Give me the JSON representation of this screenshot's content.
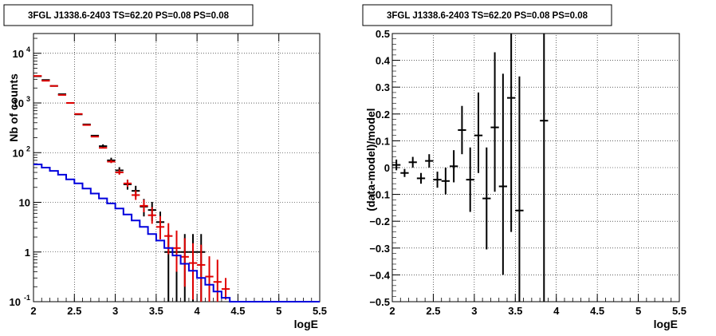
{
  "panels": {
    "left": {
      "title": "3FGL J1338.6-2403 TS=62.20 PS=0.08 PS=0.08"
    },
    "right": {
      "title": "3FGL J1338.6-2403 TS=62.20 PS=0.08 PS=0.08"
    }
  },
  "chart_data": [
    {
      "type": "scatter",
      "title": "3FGL J1338.6-2403 TS=62.20 PS=0.08 PS=0.08",
      "xlabel": "logE",
      "ylabel": "Nb of counts",
      "xlim": [
        2,
        5.5
      ],
      "ylim": [
        0.1,
        25000
      ],
      "yscale": "log",
      "grid": true,
      "x_ticks": [
        "2",
        "2.5",
        "3",
        "3.5",
        "4",
        "4.5",
        "5",
        "5.5"
      ],
      "y_ticks": [
        {
          "value": 0.1,
          "label": "10",
          "exp": "-1"
        },
        {
          "value": 1,
          "label": "1",
          "exp": ""
        },
        {
          "value": 10,
          "label": "10",
          "exp": ""
        },
        {
          "value": 100,
          "label": "10",
          "exp": "2"
        },
        {
          "value": 1000,
          "label": "10",
          "exp": "3"
        },
        {
          "value": 10000,
          "label": "10",
          "exp": "4"
        }
      ],
      "bin_width": 0.1,
      "series": [
        {
          "color": "#000000",
          "x": [
            2.05,
            2.15,
            2.25,
            2.35,
            2.45,
            2.55,
            2.65,
            2.75,
            2.85,
            2.95,
            3.05,
            3.15,
            3.25,
            3.35,
            3.45,
            3.55,
            3.65,
            3.75,
            3.85,
            3.95,
            4.05
          ],
          "values": [
            3450,
            2900,
            2200,
            1500,
            1000,
            590,
            370,
            220,
            135,
            70,
            44,
            23,
            17,
            8.2,
            7,
            4,
            1,
            1,
            1,
            1,
            1
          ],
          "err_low": [
            0,
            0,
            0,
            0,
            0,
            0,
            0,
            0,
            11,
            8,
            6.5,
            5,
            4,
            3,
            2.8,
            2,
            0.9,
            0.9,
            0.9,
            0.9,
            0.9
          ],
          "err_high": [
            0,
            0,
            0,
            0,
            0,
            0,
            0,
            0,
            12,
            9,
            7,
            5.5,
            4.5,
            3.5,
            3.2,
            2.5,
            1.3,
            1.3,
            1.3,
            1.3,
            1.3
          ]
        },
        {
          "color": "#e00000",
          "x": [
            2.05,
            2.15,
            2.25,
            2.35,
            2.45,
            2.55,
            2.65,
            2.75,
            2.85,
            2.95,
            3.05,
            3.15,
            3.25,
            3.35,
            3.45,
            3.55,
            3.65,
            3.75,
            3.85,
            3.95,
            4.05,
            4.15,
            4.25,
            4.35
          ],
          "values": [
            3500,
            2800,
            2200,
            1450,
            1000,
            600,
            360,
            210,
            125,
            66,
            40,
            24,
            14,
            8.5,
            5.5,
            3.2,
            2.1,
            1.2,
            0.8,
            0.6,
            0.55,
            0.32,
            0.25,
            0.18
          ],
          "err_low": [
            0,
            0,
            0,
            0,
            0,
            0,
            0,
            0,
            0,
            4,
            4,
            3.5,
            2.8,
            2.2,
            1.8,
            1.4,
            1.2,
            0.8,
            0.6,
            0.49,
            0.46,
            0.28,
            0.22,
            0.07
          ],
          "err_high": [
            0,
            0,
            0,
            0,
            0,
            0,
            0,
            0,
            0,
            5,
            5.5,
            4.5,
            3.5,
            2.8,
            2.5,
            2.1,
            1.7,
            1.5,
            1.1,
            0.9,
            0.85,
            0.5,
            0.45,
            0.12
          ]
        },
        {
          "color": "#0000dd",
          "kind": "step",
          "edges": [
            2.0,
            2.1,
            2.2,
            2.3,
            2.4,
            2.5,
            2.6,
            2.7,
            2.8,
            2.9,
            3.0,
            3.1,
            3.2,
            3.3,
            3.4,
            3.5,
            3.6,
            3.7,
            3.8,
            3.9,
            4.0,
            4.1,
            4.2,
            4.3,
            4.4,
            5.5
          ],
          "values": [
            58,
            50,
            43,
            36,
            29,
            24,
            19,
            15,
            12,
            9.5,
            7.5,
            5.7,
            4.3,
            3.2,
            2.3,
            1.7,
            1.2,
            0.85,
            0.58,
            0.42,
            0.3,
            0.22,
            0.16,
            0.12,
            0.1
          ]
        }
      ]
    },
    {
      "type": "scatter",
      "title": "3FGL J1338.6-2403 TS=62.20 PS=0.08 PS=0.08",
      "xlabel": "logE",
      "ylabel": "(data-model)/model",
      "xlim": [
        2,
        5.5
      ],
      "ylim": [
        -0.5,
        0.5
      ],
      "grid": true,
      "x_ticks": [
        "2",
        "2.5",
        "3",
        "3.5",
        "4",
        "4.5",
        "5",
        "5.5"
      ],
      "y_ticks": [
        -0.5,
        -0.4,
        -0.3,
        -0.2,
        -0.1,
        0,
        0.1,
        0.2,
        0.3,
        0.4,
        0.5
      ],
      "y_tick_labels": [
        "−0.5",
        "−0.4",
        "−0.3",
        "−0.2",
        "−0.1",
        "0",
        "0.1",
        "0.2",
        "0.3",
        "0.4",
        "0.5"
      ],
      "bin_width": 0.1,
      "series": [
        {
          "color": "#000000",
          "x": [
            2.05,
            2.15,
            2.25,
            2.35,
            2.45,
            2.55,
            2.65,
            2.75,
            2.85,
            2.95,
            3.05,
            3.15,
            3.25,
            3.35,
            3.45,
            3.55,
            3.85
          ],
          "values": [
            0.01,
            -0.02,
            0.02,
            -0.04,
            0.025,
            -0.045,
            -0.05,
            0.005,
            0.14,
            -0.045,
            0.12,
            -0.115,
            0.15,
            -0.07,
            0.26,
            -0.16,
            0.175
          ],
          "err_low": [
            0.02,
            0.015,
            0.02,
            0.02,
            0.025,
            0.03,
            0.05,
            0.06,
            0.09,
            0.12,
            0.14,
            0.19,
            0.24,
            0.33,
            0.5,
            0.4,
            0.7
          ],
          "err_high": [
            0.02,
            0.015,
            0.02,
            0.02,
            0.025,
            0.03,
            0.05,
            0.06,
            0.09,
            0.12,
            0.16,
            0.19,
            0.28,
            0.42,
            0.5,
            0.5,
            0.5
          ]
        }
      ]
    }
  ]
}
